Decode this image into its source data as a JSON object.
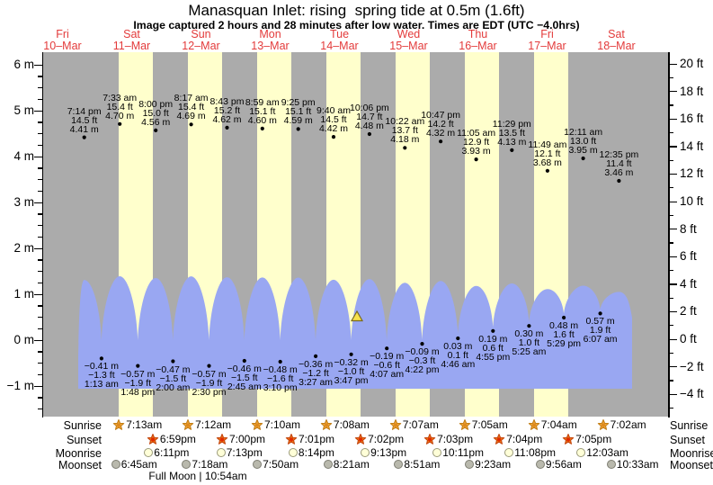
{
  "title": "Manasquan Inlet: rising  spring tide at 0.5m (1.6ft)",
  "subtitle": "Image captured 2 hours and 28 minutes after low water. Times are EDT (UTC −4.0hrs)",
  "days": [
    {
      "name": "Fri",
      "date": "10–Mar"
    },
    {
      "name": "Sat",
      "date": "11–Mar"
    },
    {
      "name": "Sun",
      "date": "12–Mar"
    },
    {
      "name": "Mon",
      "date": "13–Mar"
    },
    {
      "name": "Tue",
      "date": "14–Mar"
    },
    {
      "name": "Wed",
      "date": "15–Mar"
    },
    {
      "name": "Thu",
      "date": "16–Mar"
    },
    {
      "name": "Fri",
      "date": "17–Mar"
    },
    {
      "name": "Sat",
      "date": "18–Mar"
    }
  ],
  "chart_data": {
    "type": "area",
    "title": "Manasquan Inlet: rising spring tide at 0.5m (1.6ft)",
    "x_range_days": 9,
    "y_axis_left": {
      "unit": "m",
      "labels": [
        {
          "v": 6,
          "text": "6 m"
        },
        {
          "v": 5,
          "text": "5 m"
        },
        {
          "v": 4,
          "text": "4 m"
        },
        {
          "v": 3,
          "text": "3 m"
        },
        {
          "v": 2,
          "text": "2 m"
        },
        {
          "v": 1,
          "text": "1 m"
        },
        {
          "v": 0,
          "text": "0 m"
        },
        {
          "v": -1,
          "text": "−1 m"
        }
      ]
    },
    "y_axis_right": {
      "unit": "ft",
      "labels": [
        {
          "v": 20,
          "text": "20 ft"
        },
        {
          "v": 18,
          "text": "18 ft"
        },
        {
          "v": 16,
          "text": "16 ft"
        },
        {
          "v": 14,
          "text": "14 ft"
        },
        {
          "v": 12,
          "text": "12 ft"
        },
        {
          "v": 10,
          "text": "10 ft"
        },
        {
          "v": 8,
          "text": "8 ft"
        },
        {
          "v": 6,
          "text": "6 ft"
        },
        {
          "v": 4,
          "text": "4 ft"
        },
        {
          "v": 2,
          "text": "2 ft"
        },
        {
          "v": 0,
          "text": "0 ft"
        },
        {
          "v": -2,
          "text": "−2 ft"
        },
        {
          "v": -4,
          "text": "−4 ft"
        }
      ]
    },
    "high_tides": [
      {
        "day": 0,
        "time": "7:14 pm",
        "ft": "14.5 ft",
        "m": "4.41 m",
        "m_val": 4.41
      },
      {
        "day": 1,
        "time": "7:33 am",
        "ft": "15.4 ft",
        "m": "4.70 m",
        "m_val": 4.7
      },
      {
        "day": 1,
        "time": "8:00 pm",
        "ft": "15.0 ft",
        "m": "4.56 m",
        "m_val": 4.56
      },
      {
        "day": 2,
        "time": "8:17 am",
        "ft": "15.4 ft",
        "m": "4.69 m",
        "m_val": 4.69
      },
      {
        "day": 2,
        "time": "8:43 pm",
        "ft": "15.2 ft",
        "m": "4.62 m",
        "m_val": 4.62
      },
      {
        "day": 3,
        "time": "8:59 am",
        "ft": "15.1 ft",
        "m": "4.60 m",
        "m_val": 4.6
      },
      {
        "day": 3,
        "time": "9:25 pm",
        "ft": "15.1 ft",
        "m": "4.59 m",
        "m_val": 4.59
      },
      {
        "day": 4,
        "time": "9:40 am",
        "ft": "14.5 ft",
        "m": "4.42 m",
        "m_val": 4.42
      },
      {
        "day": 4,
        "time": "10:06 pm",
        "ft": "14.7 ft",
        "m": "4.48 m",
        "m_val": 4.48
      },
      {
        "day": 5,
        "time": "10:22 am",
        "ft": "13.7 ft",
        "m": "4.18 m",
        "m_val": 4.18
      },
      {
        "day": 5,
        "time": "10:47 pm",
        "ft": "14.2 ft",
        "m": "4.32 m",
        "m_val": 4.32
      },
      {
        "day": 6,
        "time": "11:05 am",
        "ft": "12.9 ft",
        "m": "3.93 m",
        "m_val": 3.93
      },
      {
        "day": 6,
        "time": "11:29 pm",
        "ft": "13.5 ft",
        "m": "4.13 m",
        "m_val": 4.13
      },
      {
        "day": 7,
        "time": "11:49 am",
        "ft": "12.1 ft",
        "m": "3.68 m",
        "m_val": 3.68
      },
      {
        "day": 8,
        "time": "12:11 am",
        "ft": "13.0 ft",
        "m": "3.95 m",
        "m_val": 3.95
      },
      {
        "day": 8,
        "time": "12:35 pm",
        "ft": "11.4 ft",
        "m": "3.46 m",
        "m_val": 3.46
      }
    ],
    "low_tides": [
      {
        "day": 1,
        "time": "1:13 am",
        "m": "−0.41 m",
        "ft": "−1.3 ft",
        "m_val": -0.41
      },
      {
        "day": 1,
        "time": "1:48 pm",
        "m": "−0.57 m",
        "ft": "−1.9 ft",
        "m_val": -0.57
      },
      {
        "day": 2,
        "time": "2:00 am",
        "m": "−0.47 m",
        "ft": "−1.5 ft",
        "m_val": -0.47
      },
      {
        "day": 2,
        "time": "2:30 pm",
        "m": "−0.57 m",
        "ft": "−1.9 ft",
        "m_val": -0.57
      },
      {
        "day": 3,
        "time": "2:45 am",
        "m": "−0.46 m",
        "ft": "−1.5 ft",
        "m_val": -0.46
      },
      {
        "day": 3,
        "time": "3:10 pm",
        "m": "−0.48 m",
        "ft": "−1.6 ft",
        "m_val": -0.48
      },
      {
        "day": 4,
        "time": "3:27 am",
        "m": "−0.36 m",
        "ft": "−1.2 ft",
        "m_val": -0.36
      },
      {
        "day": 4,
        "time": "3:47 pm",
        "m": "−0.32 m",
        "ft": "−1.0 ft",
        "m_val": -0.32
      },
      {
        "day": 5,
        "time": "4:07 am",
        "m": "−0.19 m",
        "ft": "−0.6 ft",
        "m_val": -0.19
      },
      {
        "day": 5,
        "time": "4:22 pm",
        "m": "−0.09 m",
        "ft": "−0.3 ft",
        "m_val": -0.09
      },
      {
        "day": 6,
        "time": "4:46 am",
        "m": "0.03 m",
        "ft": "0.1 ft",
        "m_val": 0.03
      },
      {
        "day": 6,
        "time": "4:55 pm",
        "m": "0.19 m",
        "ft": "0.6 ft",
        "m_val": 0.19
      },
      {
        "day": 7,
        "time": "5:25 am",
        "m": "0.30 m",
        "ft": "1.0 ft",
        "m_val": 0.3
      },
      {
        "day": 7,
        "time": "5:29 pm",
        "m": "0.48 m",
        "ft": "1.6 ft",
        "m_val": 0.48
      },
      {
        "day": 8,
        "time": "6:07 am",
        "m": "0.57 m",
        "ft": "1.9 ft",
        "m_val": 0.57
      }
    ],
    "current_level": {
      "m": 0.5,
      "note": "rising spring tide at 0.5m (1.6ft)"
    }
  },
  "astro": {
    "rows": [
      {
        "id": "sunrise",
        "label": "Sunrise",
        "icon": "sunrise-icon",
        "entries": [
          {
            "day": 1,
            "time": "7:13am"
          },
          {
            "day": 2,
            "time": "7:12am"
          },
          {
            "day": 3,
            "time": "7:10am"
          },
          {
            "day": 4,
            "time": "7:08am"
          },
          {
            "day": 5,
            "time": "7:07am"
          },
          {
            "day": 6,
            "time": "7:05am"
          },
          {
            "day": 7,
            "time": "7:04am"
          },
          {
            "day": 8,
            "time": "7:02am"
          }
        ]
      },
      {
        "id": "sunset",
        "label": "Sunset",
        "icon": "sunset-icon",
        "entries": [
          {
            "day": 1,
            "time": "6:59pm"
          },
          {
            "day": 2,
            "time": "7:00pm"
          },
          {
            "day": 3,
            "time": "7:01pm"
          },
          {
            "day": 4,
            "time": "7:02pm"
          },
          {
            "day": 5,
            "time": "7:03pm"
          },
          {
            "day": 6,
            "time": "7:04pm"
          },
          {
            "day": 7,
            "time": "7:05pm"
          }
        ]
      },
      {
        "id": "moonrise",
        "label": "Moonrise",
        "icon": "moonrise-icon",
        "entries": [
          {
            "day": 1,
            "time": "6:11pm"
          },
          {
            "day": 2,
            "time": "7:13pm"
          },
          {
            "day": 3,
            "time": "8:14pm"
          },
          {
            "day": 4,
            "time": "9:13pm"
          },
          {
            "day": 5,
            "time": "10:11pm"
          },
          {
            "day": 6,
            "time": "11:08pm"
          },
          {
            "day": 8,
            "time": "12:03am"
          }
        ]
      },
      {
        "id": "moonset",
        "label": "Moonset",
        "icon": "moonset-icon",
        "entries": [
          {
            "day": 1,
            "time": "6:45am"
          },
          {
            "day": 2,
            "time": "7:18am"
          },
          {
            "day": 3,
            "time": "7:50am"
          },
          {
            "day": 4,
            "time": "8:21am"
          },
          {
            "day": 5,
            "time": "8:51am"
          },
          {
            "day": 6,
            "time": "9:23am"
          },
          {
            "day": 7,
            "time": "9:56am"
          },
          {
            "day": 8,
            "time": "10:33am"
          }
        ]
      }
    ],
    "full_moon": "Full Moon | 10:54am"
  },
  "colors": {
    "night_band": "#ababab",
    "day_band": "#ffffcc",
    "wave": "#99a7f2",
    "date_red": "#e33b3b",
    "marker_yellow": "#f7e14b",
    "marker_border": "#7a6a1e",
    "sunrise_fill": "#f3a73a",
    "sunrise_stroke": "#c07b12",
    "sunrise_core": "#dd8a1d",
    "sunset_fill": "#ef7818",
    "sunset_stroke": "#c2430b",
    "sunset_core": "#e02800",
    "moonrise_fill": "#ffffd8",
    "moonrise_border": "#9a9a7a",
    "moonset_fill": "#b9b9ad",
    "moonset_border": "#7d7d72"
  }
}
